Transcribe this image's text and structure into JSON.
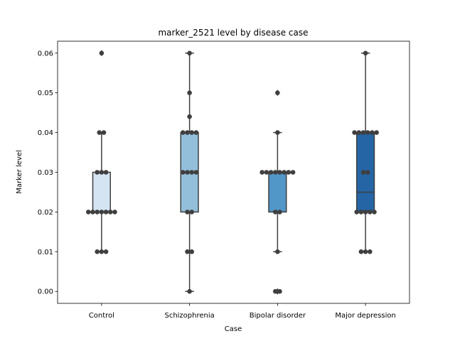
{
  "chart_data": {
    "type": "box",
    "title": "marker_2521 level by disease case",
    "xlabel": "Case",
    "ylabel": "Marker level",
    "ylim": [
      -0.003,
      0.063
    ],
    "yticks": [
      0.0,
      0.01,
      0.02,
      0.03,
      0.04,
      0.05,
      0.06
    ],
    "ytick_labels": [
      "0.00",
      "0.01",
      "0.02",
      "0.03",
      "0.04",
      "0.05",
      "0.06"
    ],
    "grid": false,
    "legend": "none",
    "categories": [
      "Control",
      "Schizophrenia",
      "Bipolar disorder",
      "Major depression"
    ],
    "boxes": [
      {
        "category": "Control",
        "color": "#d4e4f3",
        "q1": 0.02,
        "median": 0.02,
        "q3": 0.03,
        "whisker_low": 0.01,
        "whisker_high": 0.04,
        "outliers": [
          0.06
        ],
        "points": [
          0.01,
          0.01,
          0.01,
          0.02,
          0.02,
          0.02,
          0.02,
          0.02,
          0.02,
          0.02,
          0.03,
          0.03,
          0.03,
          0.04,
          0.04,
          0.06
        ]
      },
      {
        "category": "Schizophrenia",
        "color": "#93bfdb",
        "q1": 0.02,
        "median": 0.03,
        "q3": 0.04,
        "whisker_low": 0.0,
        "whisker_high": 0.06,
        "outliers": [],
        "points": [
          0.0,
          0.01,
          0.01,
          0.02,
          0.02,
          0.03,
          0.03,
          0.03,
          0.03,
          0.04,
          0.04,
          0.04,
          0.04,
          0.044,
          0.05,
          0.06
        ]
      },
      {
        "category": "Bipolar disorder",
        "color": "#5197c8",
        "q1": 0.02,
        "median": 0.03,
        "q3": 0.03,
        "whisker_low": 0.01,
        "whisker_high": 0.04,
        "outliers": [
          0.0,
          0.0,
          0.05
        ],
        "points": [
          0.0,
          0.0,
          0.01,
          0.02,
          0.02,
          0.03,
          0.03,
          0.03,
          0.03,
          0.03,
          0.03,
          0.03,
          0.03,
          0.04,
          0.05
        ]
      },
      {
        "category": "Major depression",
        "color": "#2565a6",
        "q1": 0.02,
        "median": 0.025,
        "q3": 0.04,
        "whisker_low": 0.01,
        "whisker_high": 0.06,
        "outliers": [],
        "points": [
          0.01,
          0.01,
          0.01,
          0.02,
          0.02,
          0.02,
          0.02,
          0.02,
          0.03,
          0.03,
          0.04,
          0.04,
          0.04,
          0.04,
          0.04,
          0.04,
          0.06
        ]
      }
    ],
    "point_color": "#3f3f3f",
    "line_color": "#3f3f3f"
  }
}
